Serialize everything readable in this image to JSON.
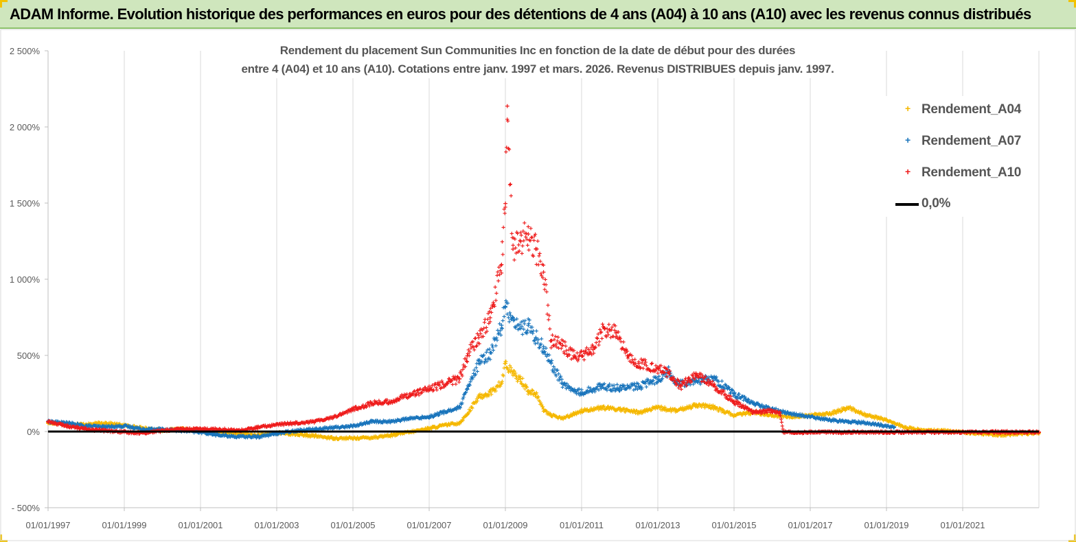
{
  "header": {
    "title": "ADAM Informe. Evolution historique des performances en euros pour des détentions de 4 ans (A04) à 10 ans (A10) avec les revenus connus distribués"
  },
  "chart_data": {
    "type": "scatter",
    "title_line1": "Rendement du placement Sun Communities Inc en fonction de la date de début pour des durées",
    "title_line2": "entre 4 (A04) et 10 ans (A10).  Cotations entre janv. 1997 et mars. 2026. Revenus DISTRIBUES depuis janv. 1997.",
    "xlabel": "",
    "ylabel": "",
    "xlim": [
      1997.0,
      2023.0
    ],
    "ylim": [
      -500,
      2500
    ],
    "y_ticks": [
      -500,
      0,
      500,
      1000,
      1500,
      2000,
      2500
    ],
    "y_tick_labels": [
      "- 500%",
      "0%",
      "500%",
      "1 000%",
      "1 500%",
      "2 000%",
      "2 500%"
    ],
    "x_ticks": [
      1997,
      1999,
      2001,
      2003,
      2005,
      2007,
      2009,
      2011,
      2013,
      2015,
      2017,
      2019,
      2021
    ],
    "x_tick_labels": [
      "01/01/1997",
      "01/01/1999",
      "01/01/2001",
      "01/01/2003",
      "01/01/2005",
      "01/01/2007",
      "01/01/2009",
      "01/01/2011",
      "01/01/2013",
      "01/01/2015",
      "01/01/2017",
      "01/01/2019",
      "01/01/2021"
    ],
    "grid": "vertical",
    "legend_position": "top-right",
    "series": [
      {
        "name": "Rendement_A04",
        "color": "#f5b800",
        "marker": "plus",
        "points": [
          [
            1997.0,
            60
          ],
          [
            1997.5,
            55
          ],
          [
            1998.0,
            50
          ],
          [
            1998.5,
            60
          ],
          [
            1999.0,
            45
          ],
          [
            1999.5,
            25
          ],
          [
            2000.0,
            10
          ],
          [
            2000.5,
            20
          ],
          [
            2001.0,
            10
          ],
          [
            2001.5,
            0
          ],
          [
            2002.0,
            -10
          ],
          [
            2002.5,
            -20
          ],
          [
            2003.0,
            -5
          ],
          [
            2003.5,
            -15
          ],
          [
            2004.0,
            -25
          ],
          [
            2004.5,
            -40
          ],
          [
            2005.0,
            -40
          ],
          [
            2005.5,
            -35
          ],
          [
            2006.0,
            -20
          ],
          [
            2006.5,
            0
          ],
          [
            2007.0,
            25
          ],
          [
            2007.5,
            50
          ],
          [
            2007.8,
            60
          ],
          [
            2008.0,
            120
          ],
          [
            2008.3,
            230
          ],
          [
            2008.6,
            260
          ],
          [
            2008.9,
            320
          ],
          [
            2009.0,
            450
          ],
          [
            2009.2,
            380
          ],
          [
            2009.4,
            350
          ],
          [
            2009.6,
            270
          ],
          [
            2009.8,
            250
          ],
          [
            2010.0,
            150
          ],
          [
            2010.2,
            110
          ],
          [
            2010.5,
            90
          ],
          [
            2010.8,
            120
          ],
          [
            2011.0,
            140
          ],
          [
            2011.5,
            160
          ],
          [
            2012.0,
            150
          ],
          [
            2012.5,
            130
          ],
          [
            2013.0,
            160
          ],
          [
            2013.5,
            140
          ],
          [
            2014.0,
            180
          ],
          [
            2014.5,
            160
          ],
          [
            2015.0,
            110
          ],
          [
            2015.5,
            130
          ],
          [
            2016.0,
            110
          ],
          [
            2016.5,
            100
          ],
          [
            2017.0,
            110
          ],
          [
            2017.5,
            120
          ],
          [
            2018.0,
            160
          ],
          [
            2018.5,
            110
          ],
          [
            2019.0,
            80
          ],
          [
            2019.5,
            30
          ],
          [
            2020.0,
            10
          ],
          [
            2020.5,
            10
          ],
          [
            2021.0,
            0
          ],
          [
            2021.5,
            -10
          ],
          [
            2022.0,
            -20
          ],
          [
            2022.5,
            -10
          ],
          [
            2023.0,
            -5
          ]
        ]
      },
      {
        "name": "Rendement_A07",
        "color": "#1a75bc",
        "marker": "plus",
        "points": [
          [
            1997.0,
            70
          ],
          [
            1997.5,
            60
          ],
          [
            1998.0,
            40
          ],
          [
            1998.5,
            35
          ],
          [
            1999.0,
            40
          ],
          [
            1999.5,
            20
          ],
          [
            2000.0,
            20
          ],
          [
            2000.5,
            10
          ],
          [
            2001.0,
            0
          ],
          [
            2001.5,
            -20
          ],
          [
            2002.0,
            -30
          ],
          [
            2002.5,
            -30
          ],
          [
            2003.0,
            -10
          ],
          [
            2003.5,
            10
          ],
          [
            2004.0,
            20
          ],
          [
            2004.5,
            30
          ],
          [
            2005.0,
            40
          ],
          [
            2005.5,
            70
          ],
          [
            2006.0,
            70
          ],
          [
            2006.5,
            90
          ],
          [
            2007.0,
            100
          ],
          [
            2007.5,
            140
          ],
          [
            2007.8,
            160
          ],
          [
            2008.0,
            280
          ],
          [
            2008.3,
            450
          ],
          [
            2008.6,
            520
          ],
          [
            2008.9,
            700
          ],
          [
            2009.0,
            820
          ],
          [
            2009.2,
            750
          ],
          [
            2009.4,
            680
          ],
          [
            2009.6,
            700
          ],
          [
            2009.8,
            620
          ],
          [
            2010.0,
            560
          ],
          [
            2010.2,
            450
          ],
          [
            2010.5,
            320
          ],
          [
            2010.8,
            270
          ],
          [
            2011.0,
            260
          ],
          [
            2011.5,
            300
          ],
          [
            2012.0,
            290
          ],
          [
            2012.5,
            300
          ],
          [
            2013.0,
            350
          ],
          [
            2013.3,
            400
          ],
          [
            2013.5,
            320
          ],
          [
            2014.0,
            340
          ],
          [
            2014.5,
            350
          ],
          [
            2015.0,
            250
          ],
          [
            2015.5,
            190
          ],
          [
            2016.0,
            150
          ],
          [
            2016.5,
            120
          ],
          [
            2017.0,
            100
          ],
          [
            2017.5,
            80
          ],
          [
            2018.0,
            70
          ],
          [
            2018.5,
            60
          ],
          [
            2019.0,
            40
          ],
          [
            2019.2,
            30
          ]
        ]
      },
      {
        "name": "Rendement_A10",
        "color": "#ee1c1c",
        "marker": "plus",
        "points": [
          [
            1997.0,
            70
          ],
          [
            1997.5,
            40
          ],
          [
            1998.0,
            20
          ],
          [
            1998.5,
            10
          ],
          [
            1999.0,
            0
          ],
          [
            1999.5,
            -5
          ],
          [
            2000.0,
            10
          ],
          [
            2000.5,
            20
          ],
          [
            2001.0,
            20
          ],
          [
            2001.5,
            20
          ],
          [
            2002.0,
            10
          ],
          [
            2002.5,
            30
          ],
          [
            2003.0,
            50
          ],
          [
            2003.5,
            60
          ],
          [
            2004.0,
            70
          ],
          [
            2004.5,
            100
          ],
          [
            2005.0,
            150
          ],
          [
            2005.5,
            190
          ],
          [
            2006.0,
            200
          ],
          [
            2006.5,
            250
          ],
          [
            2007.0,
            280
          ],
          [
            2007.5,
            330
          ],
          [
            2007.8,
            350
          ],
          [
            2008.0,
            500
          ],
          [
            2008.3,
            620
          ],
          [
            2008.6,
            750
          ],
          [
            2008.9,
            1100
          ],
          [
            2009.0,
            1500
          ],
          [
            2009.05,
            2140
          ],
          [
            2009.2,
            1200
          ],
          [
            2009.4,
            1250
          ],
          [
            2009.6,
            1300
          ],
          [
            2009.8,
            1200
          ],
          [
            2010.0,
            1050
          ],
          [
            2010.2,
            600
          ],
          [
            2010.5,
            570
          ],
          [
            2010.8,
            500
          ],
          [
            2011.0,
            500
          ],
          [
            2011.3,
            540
          ],
          [
            2011.6,
            680
          ],
          [
            2011.9,
            650
          ],
          [
            2012.2,
            500
          ],
          [
            2012.5,
            450
          ],
          [
            2013.0,
            420
          ],
          [
            2013.3,
            380
          ],
          [
            2013.6,
            300
          ],
          [
            2014.0,
            380
          ],
          [
            2014.5,
            300
          ],
          [
            2015.0,
            200
          ],
          [
            2015.5,
            130
          ],
          [
            2016.0,
            140
          ],
          [
            2016.2,
            130
          ],
          [
            2016.3,
            0
          ],
          [
            2017.0,
            0
          ],
          [
            2018.0,
            0
          ],
          [
            2019.0,
            0
          ],
          [
            2020.0,
            0
          ],
          [
            2021.0,
            0
          ],
          [
            2022.0,
            0
          ],
          [
            2023.0,
            0
          ]
        ]
      },
      {
        "name": "0,0%",
        "color": "#000000",
        "marker": "line",
        "points": [
          [
            1997.0,
            0
          ],
          [
            2023.0,
            0
          ]
        ]
      }
    ]
  },
  "legend": {
    "items": [
      "Rendement_A04",
      "Rendement_A07",
      "Rendement_A10",
      "0,0%"
    ],
    "colors": [
      "#f5b800",
      "#1a75bc",
      "#ee1c1c",
      "#000000"
    ]
  }
}
